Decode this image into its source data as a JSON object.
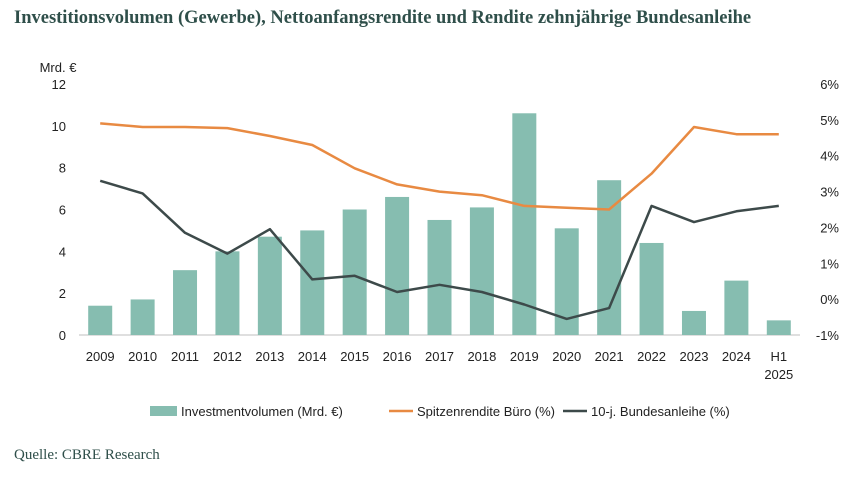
{
  "header": {
    "title": "Investitionsvolumen (Gewerbe), Nettoanfangsrendite und Rendite zehnjährige Bundesanleihe"
  },
  "footer": {
    "source": "Quelle: CBRE Research"
  },
  "chart_data": {
    "type": "bar",
    "categories": [
      [
        "2009"
      ],
      [
        "2010"
      ],
      [
        "2011"
      ],
      [
        "2012"
      ],
      [
        "2013"
      ],
      [
        "2014"
      ],
      [
        "2015"
      ],
      [
        "2016"
      ],
      [
        "2017"
      ],
      [
        "2018"
      ],
      [
        "2019"
      ],
      [
        "2020"
      ],
      [
        "2021"
      ],
      [
        "2022"
      ],
      [
        "2023"
      ],
      [
        "2024"
      ],
      [
        "H1",
        "2025"
      ]
    ],
    "left_axis": {
      "unit_label": "Mrd. €",
      "min": 0,
      "max": 12,
      "ticks": [
        0,
        2,
        4,
        6,
        8,
        10,
        12
      ],
      "tick_labels": [
        "0",
        "2",
        "4",
        "6",
        "8",
        "10",
        "12"
      ]
    },
    "right_axis": {
      "min": -1,
      "max": 6,
      "ticks": [
        -1,
        0,
        1,
        2,
        3,
        4,
        5,
        6
      ],
      "tick_labels": [
        "-1%",
        "0%",
        "1%",
        "2%",
        "3%",
        "4%",
        "5%",
        "6%"
      ]
    },
    "series": [
      {
        "name": "Investmentvolumen (Mrd. €)",
        "kind": "bar",
        "axis": "left",
        "color": "#86bdb0",
        "values": [
          1.4,
          1.7,
          3.1,
          4.0,
          4.7,
          5.0,
          6.0,
          6.6,
          5.5,
          6.1,
          10.6,
          5.1,
          7.4,
          4.4,
          1.15,
          2.6,
          0.7
        ]
      },
      {
        "name": "Spitzenrendite Büro (%)",
        "kind": "line",
        "axis": "right",
        "color": "#e88a42",
        "values": [
          4.9,
          4.8,
          4.8,
          4.77,
          4.55,
          4.3,
          3.65,
          3.2,
          3.0,
          2.9,
          2.6,
          2.55,
          2.5,
          3.5,
          4.8,
          4.6,
          4.6
        ]
      },
      {
        "name": "10-j. Bundesanleihe (%)",
        "kind": "line",
        "axis": "right",
        "color": "#3d4a4a",
        "values": [
          3.3,
          2.95,
          1.85,
          1.27,
          1.95,
          0.55,
          0.65,
          0.2,
          0.4,
          0.2,
          -0.15,
          -0.55,
          -0.25,
          2.6,
          2.15,
          2.45,
          2.6
        ]
      }
    ],
    "legend_position": "bottom",
    "grid": false
  }
}
